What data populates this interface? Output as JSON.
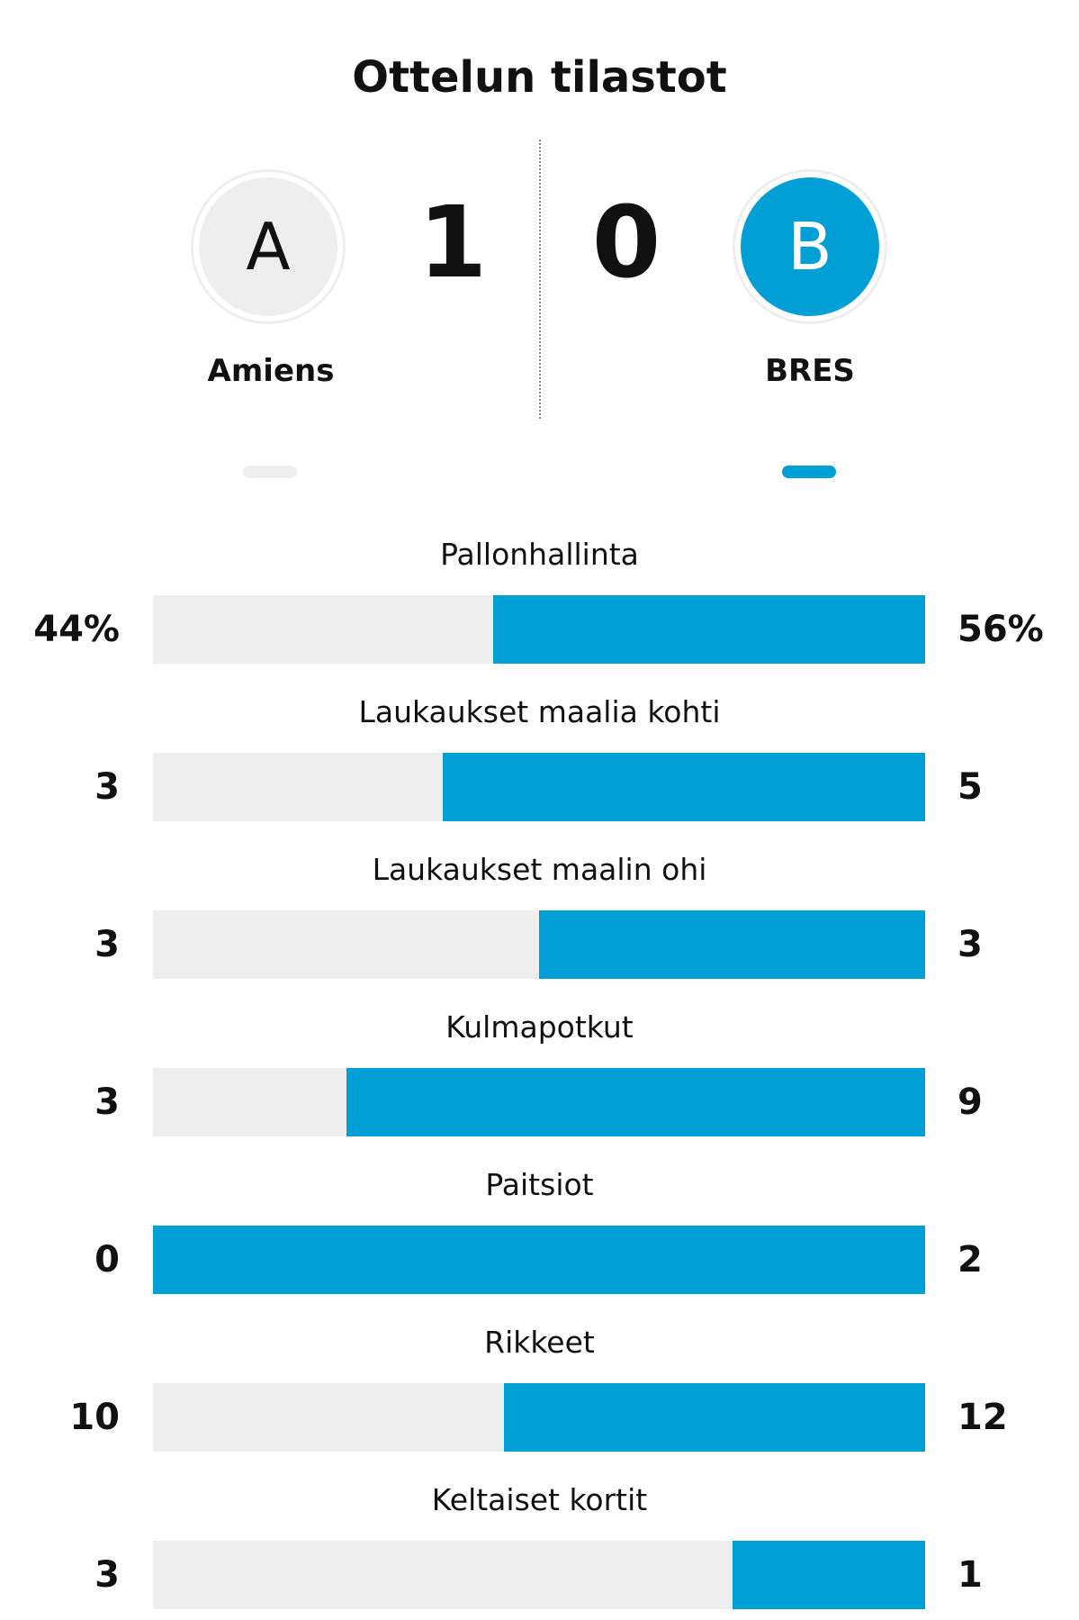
{
  "title": "Ottelun tilastot",
  "home": {
    "name": "Amiens",
    "initial": "A",
    "score": "1",
    "color": "#eeeeee"
  },
  "away": {
    "name": "BRES",
    "initial": "B",
    "score": "0",
    "color": "#00a0d6"
  },
  "stats": [
    {
      "label": "Pallonhallinta",
      "home": "44%",
      "away": "56%",
      "away_share": 0.56
    },
    {
      "label": "Laukaukset maalia kohti",
      "home": "3",
      "away": "5",
      "away_share": 0.625
    },
    {
      "label": "Laukaukset maalin ohi",
      "home": "3",
      "away": "3",
      "away_share": 0.5
    },
    {
      "label": "Kulmapotkut",
      "home": "3",
      "away": "9",
      "away_share": 0.75
    },
    {
      "label": "Paitsiot",
      "home": "0",
      "away": "2",
      "away_share": 1.0
    },
    {
      "label": "Rikkeet",
      "home": "10",
      "away": "12",
      "away_share": 0.545
    },
    {
      "label": "Keltaiset kortit",
      "home": "3",
      "away": "1",
      "away_share": 0.25
    }
  ]
}
